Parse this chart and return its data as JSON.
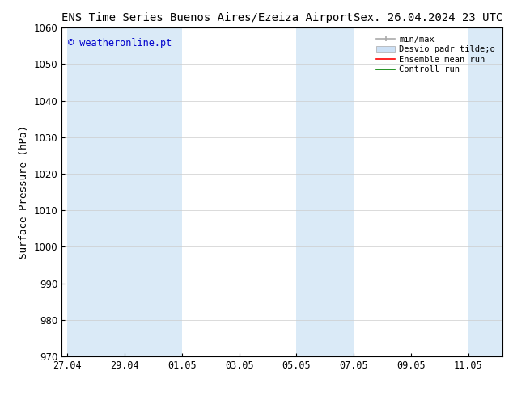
{
  "title_left": "ENS Time Series Buenos Aires/Ezeiza Airport",
  "title_right": "Sex. 26.04.2024 23 UTC",
  "ylabel": "Surface Pressure (hPa)",
  "ylim": [
    970,
    1060
  ],
  "yticks": [
    970,
    980,
    990,
    1000,
    1010,
    1020,
    1030,
    1040,
    1050,
    1060
  ],
  "xtick_labels": [
    "27.04",
    "29.04",
    "01.05",
    "03.05",
    "05.05",
    "07.05",
    "09.05",
    "11.05"
  ],
  "watermark": "© weatheronline.pt",
  "legend_entries": [
    "min/max",
    "Desvio padr tilde;o",
    "Ensemble mean run",
    "Controll run"
  ],
  "shaded_color": "#daeaf7",
  "background_color": "#ffffff",
  "grid_color": "#cccccc",
  "title_fontsize": 10,
  "axis_fontsize": 9,
  "tick_fontsize": 8.5
}
